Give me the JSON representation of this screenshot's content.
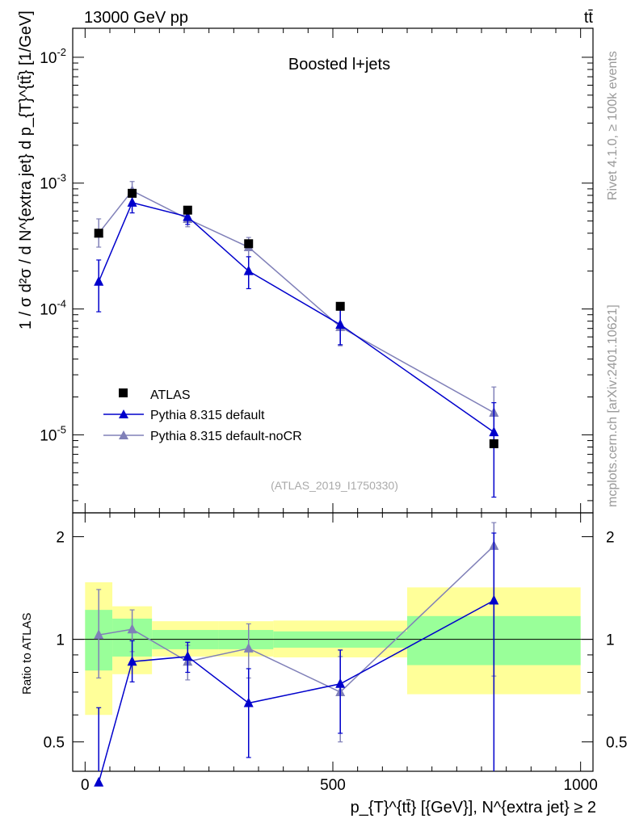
{
  "header": {
    "energy_label": "13000 GeV pp",
    "process_label": "tt̄"
  },
  "side_labels": {
    "rivet": "Rivet 4.1.0, ≥ 100k events",
    "mcplots": "mcplots.cern.ch [arXiv:2401.10621]"
  },
  "main_plot": {
    "title": "Boosted l+jets",
    "analysis_tag": "(ATLAS_2019_I1750330)",
    "ylabel": "1 / σ d²σ / d N^{extra jet} d p_{T}^{tt̄} [1/GeV]",
    "y_scale": "log",
    "y_ticks": [
      "10^-5",
      "10^-4",
      "10^-3",
      "10^-2"
    ],
    "legend": {
      "placement": "lower-left",
      "entries": [
        "ATLAS",
        "Pythia 8.315 default",
        "Pythia 8.315 default-noCR"
      ]
    }
  },
  "ratio_plot": {
    "ylabel": "Ratio to ATLAS",
    "y_ticks": [
      "0.5",
      "1",
      "2"
    ]
  },
  "x_axis": {
    "label": "p_{T}^{tt̄} [{GeV}], N^{extra jet} ≥ 2",
    "ticks": [
      "0",
      "500",
      "1000"
    ]
  },
  "colors": {
    "data": "#000000",
    "default": "#0000cc",
    "nocr": "#8080b8",
    "band_inner": "#99ff99",
    "band_outer": "#ffff99"
  },
  "chart_data": {
    "type": "scatter",
    "x_range": [
      -25,
      1025
    ],
    "y_range_main": [
      2.4e-06,
      0.017
    ],
    "y_range_ratio": [
      0.41,
      2.35
    ],
    "bins": [
      {
        "xlo": 0,
        "xhi": 55,
        "x": 27.5
      },
      {
        "xlo": 55,
        "xhi": 135,
        "x": 95
      },
      {
        "xlo": 135,
        "xhi": 270,
        "x": 207
      },
      {
        "xlo": 270,
        "xhi": 380,
        "x": 330
      },
      {
        "xlo": 380,
        "xhi": 650,
        "x": 515
      },
      {
        "xlo": 650,
        "xhi": 1000,
        "x": 825
      }
    ],
    "series": [
      {
        "name": "ATLAS",
        "marker": "square",
        "values": [
          0.0004,
          0.00083,
          0.00061,
          0.00033,
          0.000105,
          8.5e-06
        ]
      },
      {
        "name": "Pythia 8.315 default",
        "marker": "triangle",
        "values": [
          0.000165,
          0.0007,
          0.00054,
          0.0002,
          7.5e-05,
          1.05e-05
        ],
        "err_lo": [
          9.5e-05,
          0.00058,
          0.00047,
          0.000145,
          5.2e-05,
          3.2e-06
        ],
        "err_hi": [
          0.000245,
          0.00083,
          0.00061,
          0.00026,
          0.0001,
          1.8e-05
        ],
        "ratio": [
          0.38,
          0.86,
          0.89,
          0.65,
          0.74,
          1.3
        ],
        "ratio_err_lo": [
          0.38,
          0.75,
          0.8,
          0.45,
          0.53,
          0.41
        ],
        "ratio_err_hi": [
          0.63,
          0.99,
          0.98,
          0.82,
          0.93,
          2.05
        ]
      },
      {
        "name": "Pythia 8.315 default-noCR",
        "marker": "triangle",
        "values": [
          0.0004,
          0.00087,
          0.00052,
          0.00031,
          7.2e-05,
          1.5e-05
        ],
        "err_lo": [
          0.00031,
          0.00071,
          0.00045,
          0.00026,
          5.1e-05,
          8.7e-06
        ],
        "err_hi": [
          0.00052,
          0.00103,
          0.0006,
          0.00037,
          9.8e-05,
          2.4e-05
        ],
        "ratio": [
          1.03,
          1.07,
          0.86,
          0.94,
          0.7,
          1.88
        ],
        "ratio_err_lo": [
          0.77,
          0.92,
          0.76,
          0.77,
          0.5,
          0.78
        ],
        "ratio_err_hi": [
          1.4,
          1.22,
          0.96,
          1.11,
          0.89,
          2.2
        ]
      }
    ],
    "ratio_bands": {
      "inner_lo": [
        0.81,
        0.89,
        0.935,
        0.935,
        0.945,
        0.84
      ],
      "inner_hi": [
        1.22,
        1.15,
        1.065,
        1.065,
        1.055,
        1.17
      ],
      "outer_lo": [
        0.6,
        0.79,
        0.89,
        0.89,
        0.885,
        0.69
      ],
      "outer_hi": [
        1.47,
        1.25,
        1.13,
        1.13,
        1.135,
        1.42
      ]
    }
  }
}
